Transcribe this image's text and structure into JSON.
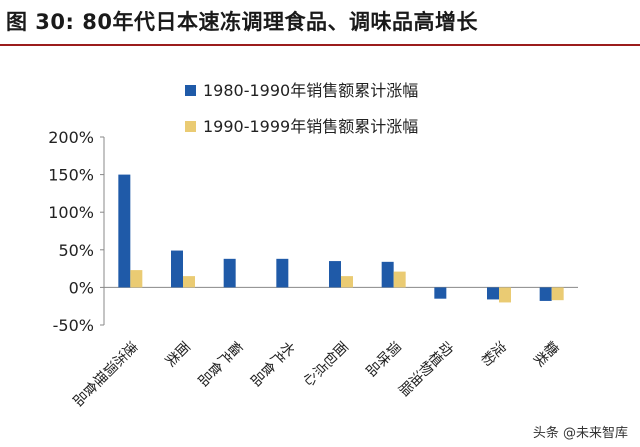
{
  "title": "图  30:  80年代日本速冻调理食品、调味品高增长",
  "watermark": "头条 @未来智库",
  "chart_data": {
    "type": "bar",
    "categories": [
      "速冻调理食品",
      "面类",
      "畜产食品",
      "水产食品",
      "面包点心",
      "调味品",
      "动植物油脂",
      "淀粉",
      "糖类"
    ],
    "series": [
      {
        "name": "1980-1990年销售额累计涨幅",
        "color": "#1f5aa8",
        "values": [
          150,
          49,
          38,
          38,
          35,
          34,
          -15,
          -16,
          -18
        ]
      },
      {
        "name": "1990-1999年销售额累计涨幅",
        "color": "#eacb73",
        "values": [
          23,
          15,
          null,
          null,
          15,
          21,
          null,
          -20,
          -17
        ]
      }
    ],
    "yticks": [
      "200%",
      "150%",
      "100%",
      "50%",
      "0%",
      "-50%"
    ],
    "ylim": [
      -50,
      200
    ],
    "legend_position": "top",
    "grid": false
  }
}
